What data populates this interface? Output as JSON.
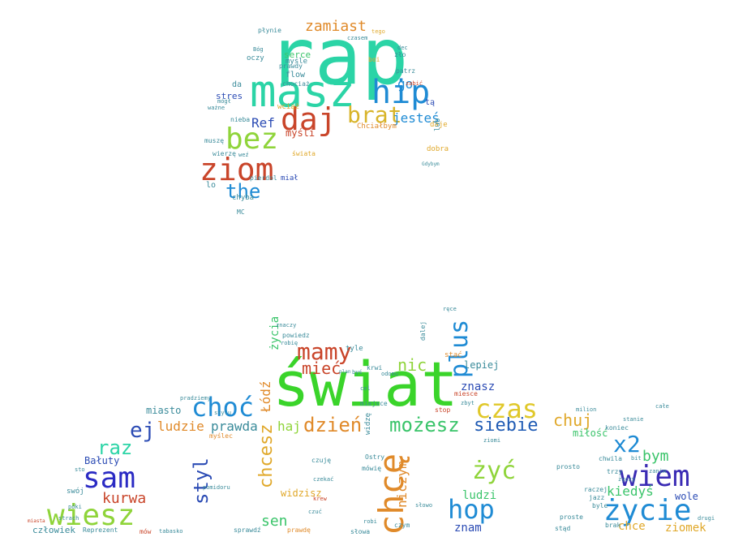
{
  "words": [
    {
      "text": "rap",
      "color": "#2bd4a6"
    },
    {
      "text": "masz",
      "color": "#2bd4a6"
    },
    {
      "text": "hip",
      "color": "#1f8bd4"
    },
    {
      "text": "brat",
      "color": "#d8b42a"
    },
    {
      "text": "daj",
      "color": "#c9452a"
    },
    {
      "text": "bez",
      "color": "#8fd43a"
    },
    {
      "text": "ziom",
      "color": "#c9452a"
    },
    {
      "text": "the",
      "color": "#1f8bd4"
    },
    {
      "text": "zamiast",
      "color": "#e08a2a"
    },
    {
      "text": "jesteś",
      "color": "#1f8bd4"
    },
    {
      "text": "go",
      "color": "#1f8bd4"
    },
    {
      "text": "Ref",
      "color": "#2b4bb4"
    },
    {
      "text": "serce",
      "color": "#3ac46a"
    },
    {
      "text": "flow",
      "color": "#3a8b9a"
    },
    {
      "text": "stres",
      "color": "#2b4bb4"
    },
    {
      "text": "świat",
      "color": "#3ad42a"
    },
    {
      "text": "chcę",
      "color": "#e08a2a"
    },
    {
      "text": "hop",
      "color": "#1f8bd4"
    },
    {
      "text": "chcesz",
      "color": "#e0a82a"
    },
    {
      "text": "czas",
      "color": "#e0c82a"
    },
    {
      "text": "choć",
      "color": "#1f8bd4"
    },
    {
      "text": "sam",
      "color": "#2b2bc4"
    },
    {
      "text": "wiesz",
      "color": "#8fd43a"
    },
    {
      "text": "życie",
      "color": "#1f8bd4"
    },
    {
      "text": "wiem",
      "color": "#3a2bb4"
    },
    {
      "text": "mamy",
      "color": "#c9452a"
    },
    {
      "text": "mieć",
      "color": "#c9452a"
    },
    {
      "text": "dzień",
      "color": "#e08a2a"
    },
    {
      "text": "możesz",
      "color": "#3ac46a"
    },
    {
      "text": "siebie",
      "color": "#1f5bb4"
    },
    {
      "text": "chuj",
      "color": "#e0a82a"
    },
    {
      "text": "x2",
      "color": "#1f8bd4"
    },
    {
      "text": "żyć",
      "color": "#8fd43a"
    },
    {
      "text": "styl",
      "color": "#2b4bb4"
    },
    {
      "text": "raz",
      "color": "#2bd4a6"
    },
    {
      "text": "ej",
      "color": "#2b4bb4"
    },
    {
      "text": "kurwa",
      "color": "#c9452a"
    },
    {
      "text": "ludzie",
      "color": "#e08a2a"
    },
    {
      "text": "prawda",
      "color": "#3a8b9a"
    },
    {
      "text": "haj",
      "color": "#8fd43a"
    },
    {
      "text": "nic",
      "color": "#8fd43a"
    },
    {
      "text": "plus",
      "color": "#1f8bd4"
    },
    {
      "text": "Łódź",
      "color": "#e08a2a"
    },
    {
      "text": "życia",
      "color": "#3ac46a"
    },
    {
      "text": "niczym",
      "color": "#e08a2a"
    },
    {
      "text": "ludzi",
      "color": "#3ac46a"
    },
    {
      "text": "znam",
      "color": "#2b4bb4"
    },
    {
      "text": "sen",
      "color": "#3ac46a"
    },
    {
      "text": "znasz",
      "color": "#2b4bb4"
    },
    {
      "text": "kiedyś",
      "color": "#3ac46a"
    },
    {
      "text": "bym",
      "color": "#3ac46a"
    },
    {
      "text": "ziomek",
      "color": "#e0a82a"
    },
    {
      "text": "chce",
      "color": "#e0a82a"
    },
    {
      "text": "człowiek",
      "color": "#3a8b9a"
    },
    {
      "text": "Bałuty",
      "color": "#2b4bb4"
    },
    {
      "text": "miasto",
      "color": "#3a8b9a"
    },
    {
      "text": "widzisz",
      "color": "#e0a82a"
    },
    {
      "text": "wole",
      "color": "#2b4bb4"
    },
    {
      "text": "miłość",
      "color": "#3ac46a"
    },
    {
      "text": "lepiej",
      "color": "#3a8b9a"
    },
    {
      "text": "myśli",
      "color": "#c9452a"
    },
    {
      "text": "chyba",
      "color": "#3a8b9a"
    },
    {
      "text": "oczy",
      "color": "#3a8b9a"
    },
    {
      "text": "prawdy",
      "color": "#3a8b9a"
    },
    {
      "text": "dobra",
      "color": "#e0a82a"
    },
    {
      "text": "MC",
      "color": "#3a8b9a"
    },
    {
      "text": "Chciałbym",
      "color": "#e08a2a"
    },
    {
      "text": "myśle",
      "color": "#3a8b9a"
    },
    {
      "text": "nieba",
      "color": "#3a8b9a"
    },
    {
      "text": "muszę",
      "color": "#3a8b9a"
    },
    {
      "text": "wierzę",
      "color": "#3a8b9a"
    },
    {
      "text": "miał",
      "color": "#2b4bb4"
    },
    {
      "text": "płynie",
      "color": "#3a8b9a"
    },
    {
      "text": "chociaż",
      "color": "#3a8b9a"
    },
    {
      "text": "tą",
      "color": "#2b4bb4"
    },
    {
      "text": "daje",
      "color": "#e0a82a"
    },
    {
      "text": "tyle",
      "color": "#3a8b9a"
    },
    {
      "text": "powiedz",
      "color": "#3a8b9a"
    },
    {
      "text": "znaczy",
      "color": "#3a8b9a"
    },
    {
      "text": "krwi",
      "color": "#3a8b9a"
    },
    {
      "text": "stać",
      "color": "#e08a2a"
    },
    {
      "text": "miejsce",
      "color": "#3a8b9a"
    },
    {
      "text": "stop",
      "color": "#c9452a"
    },
    {
      "text": "koniec",
      "color": "#3a8b9a"
    },
    {
      "text": "chwila",
      "color": "#3a8b9a"
    },
    {
      "text": "trzy",
      "color": "#3a8b9a"
    },
    {
      "text": "raczej",
      "color": "#3a8b9a"
    },
    {
      "text": "brak",
      "color": "#3a8b9a"
    },
    {
      "text": "prosto",
      "color": "#3a8b9a"
    },
    {
      "text": "proste",
      "color": "#3a8b9a"
    },
    {
      "text": "stąd",
      "color": "#3a8b9a"
    },
    {
      "text": "mów",
      "color": "#c9452a"
    },
    {
      "text": "słowa",
      "color": "#3a8b9a"
    },
    {
      "text": "czym",
      "color": "#3a8b9a"
    },
    {
      "text": "krew",
      "color": "#c9452a"
    },
    {
      "text": "czuję",
      "color": "#3a8b9a"
    },
    {
      "text": "prawdę",
      "color": "#e08a2a"
    },
    {
      "text": "sprawdź",
      "color": "#3a8b9a"
    },
    {
      "text": "myślec",
      "color": "#e08a2a"
    },
    {
      "text": "swój",
      "color": "#3a8b9a"
    },
    {
      "text": "Reprezent",
      "color": "#3a8b9a"
    },
    {
      "text": "tabasko",
      "color": "#3a8b9a"
    },
    {
      "text": "mówię",
      "color": "#3a8b9a"
    },
    {
      "text": "Ostry",
      "color": "#3a8b9a"
    },
    {
      "text": "widzę",
      "color": "#3a8b9a"
    },
    {
      "text": "pomidoru",
      "color": "#3a8b9a"
    },
    {
      "text": "mógł",
      "color": "#3a8b9a"
    },
    {
      "text": "ważne",
      "color": "#3a8b9a"
    },
    {
      "text": "wciąż",
      "color": "#e0a82a"
    },
    {
      "text": "świata",
      "color": "#e0a82a"
    },
    {
      "text": "pierdol",
      "color": "#3a8b9a"
    },
    {
      "text": "lo",
      "color": "#3a8b9a"
    },
    {
      "text": "da",
      "color": "#3a8b9a"
    },
    {
      "text": "patrz",
      "color": "#3a8b9a"
    },
    {
      "text": "zabić",
      "color": "#c9452a"
    },
    {
      "text": "lub",
      "color": "#3a8b9a"
    },
    {
      "text": "Gdybym",
      "color": "#3a8b9a"
    },
    {
      "text": "Bóg",
      "color": "#3a8b9a"
    },
    {
      "text": "boi",
      "color": "#e0a82a"
    },
    {
      "text": "dec",
      "color": "#3a8b9a"
    },
    {
      "text": "weź",
      "color": "#3a8b9a"
    },
    {
      "text": "cel",
      "color": "#3a8b9a"
    },
    {
      "text": "robię",
      "color": "#3a8b9a"
    },
    {
      "text": "plan",
      "color": "#3a8b9a"
    },
    {
      "text": "byś",
      "color": "#3a8b9a"
    },
    {
      "text": "odomu",
      "color": "#3a8b9a"
    },
    {
      "text": "milion",
      "color": "#3a8b9a"
    },
    {
      "text": "całe",
      "color": "#3a8b9a"
    },
    {
      "text": "drugi",
      "color": "#3a8b9a"
    },
    {
      "text": "jazz",
      "color": "#3a8b9a"
    },
    {
      "text": "byle",
      "color": "#3a8b9a"
    },
    {
      "text": "czuć",
      "color": "#3a8b9a"
    },
    {
      "text": "słowo",
      "color": "#3a8b9a"
    },
    {
      "text": "dalej",
      "color": "#3a8b9a"
    },
    {
      "text": "ręce",
      "color": "#3a8b9a"
    },
    {
      "text": "zbyt",
      "color": "#3a8b9a"
    },
    {
      "text": "miesce",
      "color": "#c9452a"
    },
    {
      "text": "stylu",
      "color": "#3a8b9a"
    },
    {
      "text": "pradziemy",
      "color": "#3a8b9a"
    },
    {
      "text": "sto",
      "color": "#3a8b9a"
    },
    {
      "text": "póki",
      "color": "#3a8b9a"
    },
    {
      "text": "strach",
      "color": "#3a8b9a"
    },
    {
      "text": "miasta",
      "color": "#c9452a"
    },
    {
      "text": "robi",
      "color": "#3a8b9a"
    },
    {
      "text": "czekać",
      "color": "#3a8b9a"
    },
    {
      "text": "życzy",
      "color": "#3a8b9a"
    },
    {
      "text": "ziomi",
      "color": "#3a8b9a"
    },
    {
      "text": "zanim",
      "color": "#3a8b9a"
    },
    {
      "text": "bit",
      "color": "#3a8b9a"
    },
    {
      "text": "stanie",
      "color": "#3a8b9a"
    },
    {
      "text": "tego",
      "color": "#e0a82a"
    },
    {
      "text": "zło",
      "color": "#3a8b9a"
    },
    {
      "text": "czasem",
      "color": "#3a8b9a"
    }
  ]
}
